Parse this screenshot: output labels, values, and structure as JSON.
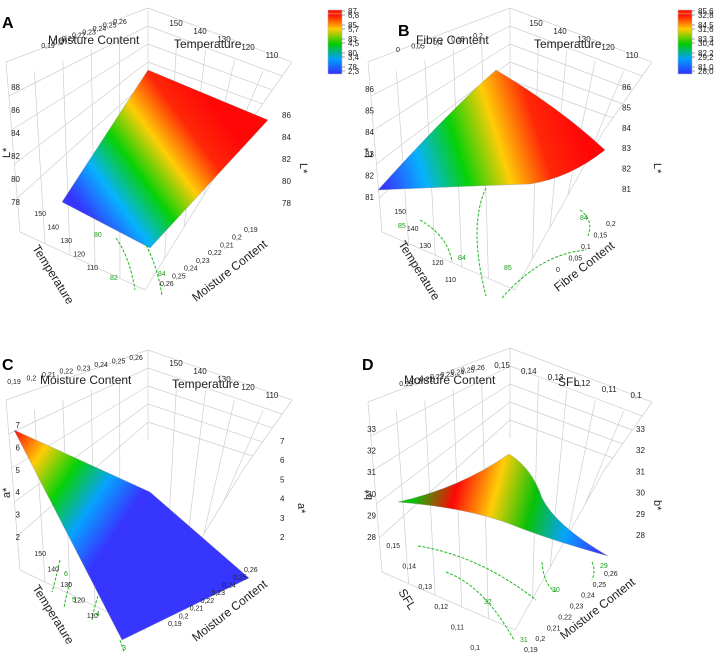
{
  "figure": "Response surface plots (3D) with contour projections",
  "chart_data": [
    {
      "type": "surface",
      "panel_label": "A",
      "response": "L*",
      "factor1": {
        "name": "Moisture Content",
        "ticks": [
          "0,19",
          "0,2",
          "0,21",
          "0,22",
          "0,23",
          "0,24",
          "0,25",
          "0,26"
        ],
        "side_ticks": [
          "0,19",
          "0,2",
          "0,21",
          "0,22",
          "0,23",
          "0,24",
          "0,25",
          "0,26"
        ]
      },
      "factor2": {
        "name": "Temperature",
        "ticks": [
          "150",
          "140",
          "130",
          "120",
          "110"
        ],
        "side_ticks": [
          "150",
          "140",
          "130",
          "120",
          "110"
        ]
      },
      "z_axis": {
        "label": "L*",
        "left_ticks": [
          "78",
          "80",
          "82",
          "84",
          "86",
          "88"
        ],
        "right_ticks": [
          "78",
          "80",
          "82",
          "84",
          "86"
        ]
      },
      "colorbar": {
        "ticks": [
          "87",
          "85",
          "83",
          "80",
          "78"
        ],
        "colors": [
          "#ff0000",
          "#ffcc00",
          "#00cc00",
          "#00a0ff",
          "#3030ff"
        ]
      },
      "contour_labels": [
        "80",
        "82",
        "84"
      ]
    },
    {
      "type": "surface",
      "panel_label": "B",
      "response": "L*",
      "factor1": {
        "name": "Fibre Content",
        "ticks": [
          "0",
          "0,05",
          "0,1",
          "0,15",
          "0,2"
        ],
        "side_ticks": [
          "0,2",
          "0,15",
          "0,1",
          "0,05",
          "0"
        ]
      },
      "factor2": {
        "name": "Temperature",
        "ticks": [
          "150",
          "140",
          "130",
          "120",
          "110"
        ],
        "side_ticks": [
          "150",
          "140",
          "130",
          "120",
          "110"
        ]
      },
      "z_axis": {
        "label": "L*",
        "left_ticks": [
          "81",
          "82",
          "83",
          "84",
          "85",
          "86"
        ],
        "right_ticks": [
          "81",
          "82",
          "83",
          "84",
          "85",
          "86"
        ]
      },
      "colorbar": {
        "ticks": [
          "85,6",
          "84,5",
          "83,3",
          "82,2",
          "81,0"
        ],
        "colors": [
          "#ff0000",
          "#ffcc00",
          "#00cc00",
          "#00a0ff",
          "#3030ff"
        ]
      },
      "contour_labels": [
        "85",
        "84",
        "85",
        "84"
      ]
    },
    {
      "type": "surface",
      "panel_label": "C",
      "response": "a*",
      "factor1": {
        "name": "Moisture Content",
        "ticks": [
          "0,19",
          "0,2",
          "0,21",
          "0,22",
          "0,23",
          "0,24",
          "0,25",
          "0,26"
        ],
        "side_ticks": [
          "0,26",
          "0,25",
          "0,24",
          "0,23",
          "0,22",
          "0,21",
          "0,2",
          "0,19"
        ]
      },
      "factor2": {
        "name": "Temperature",
        "ticks": [
          "150",
          "140",
          "130",
          "120",
          "110"
        ],
        "side_ticks": [
          "150",
          "140",
          "130",
          "120",
          "110"
        ]
      },
      "z_axis": {
        "label": "a*",
        "left_ticks": [
          "2",
          "3",
          "4",
          "5",
          "6",
          "7"
        ],
        "right_ticks": [
          "2",
          "3",
          "4",
          "5",
          "6",
          "7"
        ]
      },
      "colorbar": {
        "ticks": [
          "6,8",
          "5,7",
          "4,5",
          "3,4",
          "2,3"
        ],
        "colors": [
          "#ff0000",
          "#ffcc00",
          "#00cc00",
          "#00a0ff",
          "#3030ff"
        ]
      },
      "contour_labels": [
        "6",
        "5",
        "4",
        "3"
      ]
    },
    {
      "type": "surface",
      "panel_label": "D",
      "response": "b*",
      "factor1": {
        "name": "Moisture Content",
        "ticks": [
          "0,19",
          "0,2",
          "0,21",
          "0,22",
          "0,23",
          "0,24",
          "0,25",
          "0,26"
        ],
        "side_ticks": [
          "0,26",
          "0,25",
          "0,24",
          "0,23",
          "0,22",
          "0,21",
          "0,2",
          "0,19"
        ]
      },
      "factor2": {
        "name": "SFL",
        "ticks": [
          "0,15",
          "0,14",
          "0,13",
          "0,12",
          "0,11",
          "0,1"
        ],
        "side_ticks": [
          "0,15",
          "0,14",
          "0,13",
          "0,12",
          "0,11",
          "0,1"
        ]
      },
      "z_axis": {
        "label": "b*",
        "left_ticks": [
          "28",
          "29",
          "30",
          "31",
          "32",
          "33"
        ],
        "right_ticks": [
          "28",
          "29",
          "30",
          "31",
          "32",
          "33"
        ]
      },
      "colorbar": {
        "ticks": [
          "32,8",
          "31,6",
          "30,4",
          "29,2",
          "28,0"
        ],
        "colors": [
          "#ff0000",
          "#ffcc00",
          "#00cc00",
          "#00a0ff",
          "#3030ff"
        ]
      },
      "contour_labels": [
        "29",
        "30",
        "31",
        "32"
      ]
    }
  ]
}
